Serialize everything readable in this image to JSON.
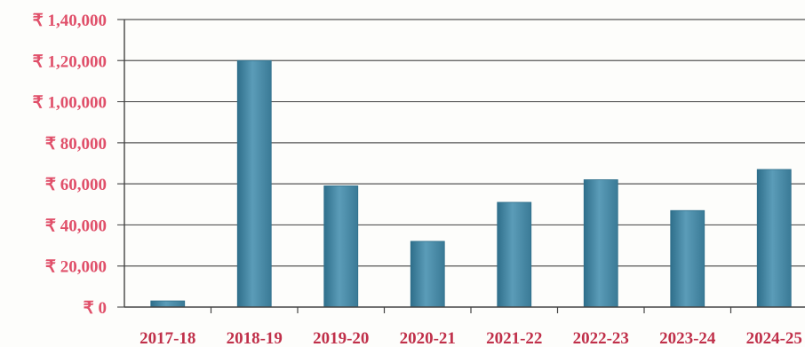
{
  "chart_data": {
    "type": "bar",
    "categories": [
      "2017-18",
      "2018-19",
      "2019-20",
      "2020-21",
      "2021-22",
      "2022-23",
      "2023-24",
      "2024-25"
    ],
    "values": [
      3000,
      120000,
      59000,
      32000,
      51000,
      62000,
      47000,
      67000
    ],
    "yticks": [
      "₹ 0",
      "₹ 20,000",
      "₹ 40,000",
      "₹ 60,000",
      "₹ 80,000",
      "₹ 1,00,000",
      "₹ 1,20,000",
      "₹ 1,40,000"
    ],
    "ylim": [
      0,
      140000
    ],
    "grid": true,
    "colors": {
      "bar": "#4f8fab",
      "bar_dark": "#2f6f8b",
      "ytick": "#e0506a",
      "xtick": "#c0304a",
      "grid": "#555555"
    }
  }
}
